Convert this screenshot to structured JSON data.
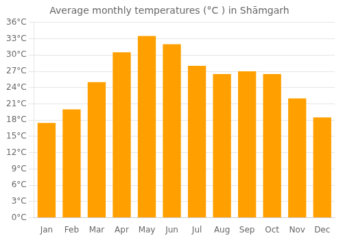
{
  "chart_data": {
    "type": "bar",
    "title": "Average monthly temperatures (°C ) in Shāmgarh",
    "categories": [
      "Jan",
      "Feb",
      "Mar",
      "Apr",
      "May",
      "Jun",
      "Jul",
      "Aug",
      "Sep",
      "Oct",
      "Nov",
      "Dec"
    ],
    "values": [
      17.5,
      20.0,
      25.0,
      30.5,
      33.5,
      32.0,
      28.0,
      26.5,
      27.0,
      26.5,
      22.0,
      18.5
    ],
    "color": "#FFA000",
    "ylim": [
      0,
      36
    ],
    "yticks": [
      {
        "value": 0,
        "label": "0°C"
      },
      {
        "value": 3,
        "label": "3°C"
      },
      {
        "value": 6,
        "label": "6°C"
      },
      {
        "value": 9,
        "label": "9°C"
      },
      {
        "value": 12,
        "label": "12°C"
      },
      {
        "value": 15,
        "label": "15°C"
      },
      {
        "value": 18,
        "label": "18°C"
      },
      {
        "value": 21,
        "label": "21°C"
      },
      {
        "value": 24,
        "label": "24°C"
      },
      {
        "value": 27,
        "label": "27°C"
      },
      {
        "value": 30,
        "label": "30°C"
      },
      {
        "value": 33,
        "label": "33°C"
      },
      {
        "value": 36,
        "label": "36°C"
      }
    ],
    "grid": true
  }
}
